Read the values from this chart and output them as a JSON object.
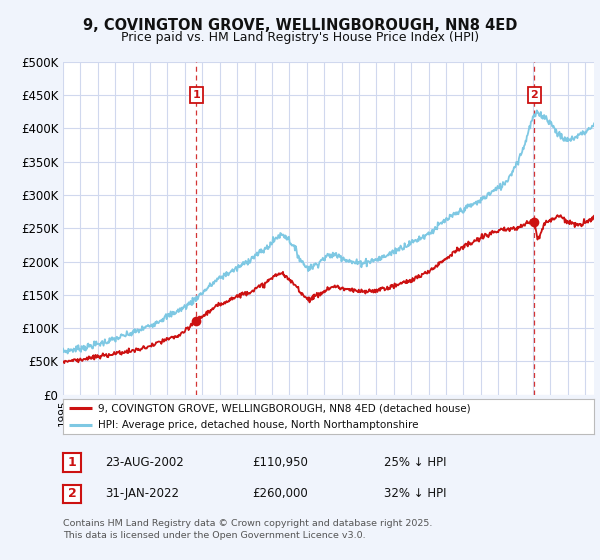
{
  "title": "9, COVINGTON GROVE, WELLINGBOROUGH, NN8 4ED",
  "subtitle": "Price paid vs. HM Land Registry's House Price Index (HPI)",
  "ylim": [
    0,
    500000
  ],
  "yticks": [
    0,
    50000,
    100000,
    150000,
    200000,
    250000,
    300000,
    350000,
    400000,
    450000,
    500000
  ],
  "ytick_labels": [
    "£0",
    "£50K",
    "£100K",
    "£150K",
    "£200K",
    "£250K",
    "£300K",
    "£350K",
    "£400K",
    "£450K",
    "£500K"
  ],
  "hpi_color": "#7ec8e3",
  "price_color": "#cc1111",
  "marker1_date": 2002.65,
  "marker1_price": 110950,
  "marker2_date": 2022.08,
  "marker2_price": 260000,
  "annotation1_date": "23-AUG-2002",
  "annotation1_price": "£110,950",
  "annotation1_hpi": "25% ↓ HPI",
  "annotation2_date": "31-JAN-2022",
  "annotation2_price": "£260,000",
  "annotation2_hpi": "32% ↓ HPI",
  "legend1": "9, COVINGTON GROVE, WELLINGBOROUGH, NN8 4ED (detached house)",
  "legend2": "HPI: Average price, detached house, North Northamptonshire",
  "footnote": "Contains HM Land Registry data © Crown copyright and database right 2025.\nThis data is licensed under the Open Government Licence v3.0.",
  "bg_color": "#f0f4fc",
  "plot_bg": "#ffffff",
  "grid_color": "#d0d8ee",
  "xmin": 1995,
  "xmax": 2025.5
}
